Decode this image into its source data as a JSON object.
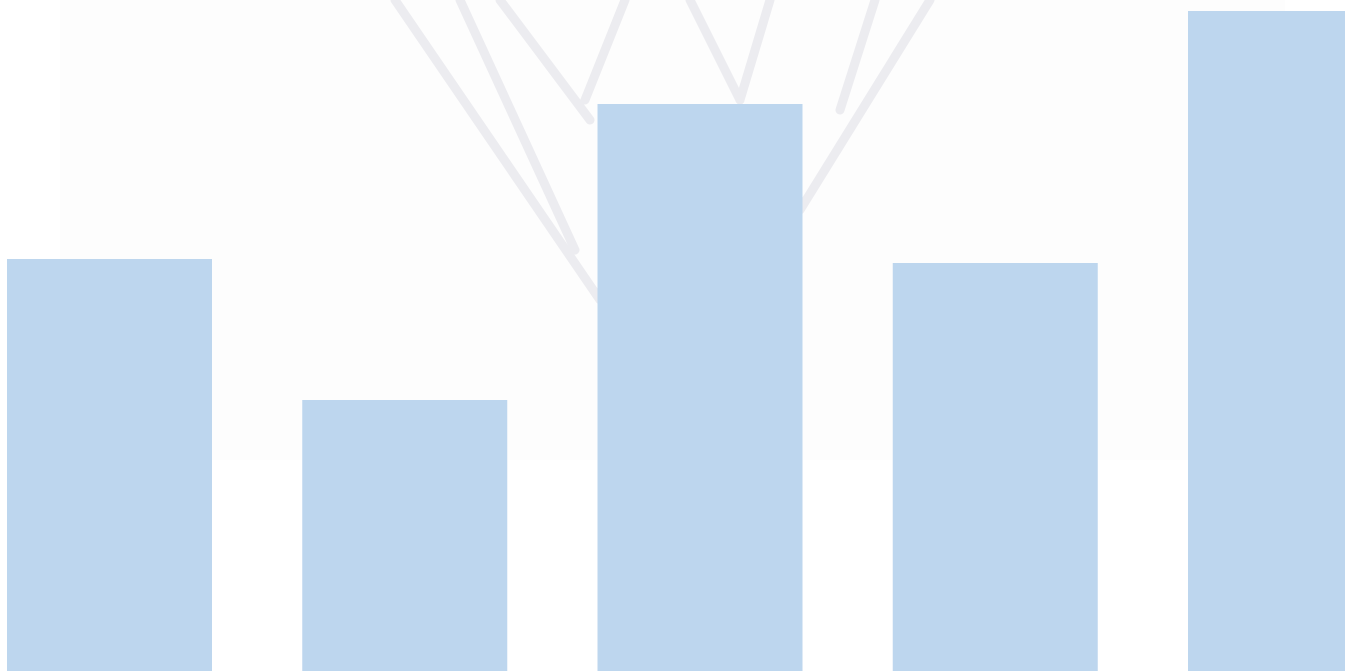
{
  "chart_data": {
    "type": "bar",
    "categories": [
      null,
      null,
      null,
      null,
      null
    ],
    "values": [
      412,
      271,
      567,
      408,
      660
    ],
    "color": "#bdd6ee",
    "ylim": [
      0,
      671
    ]
  }
}
